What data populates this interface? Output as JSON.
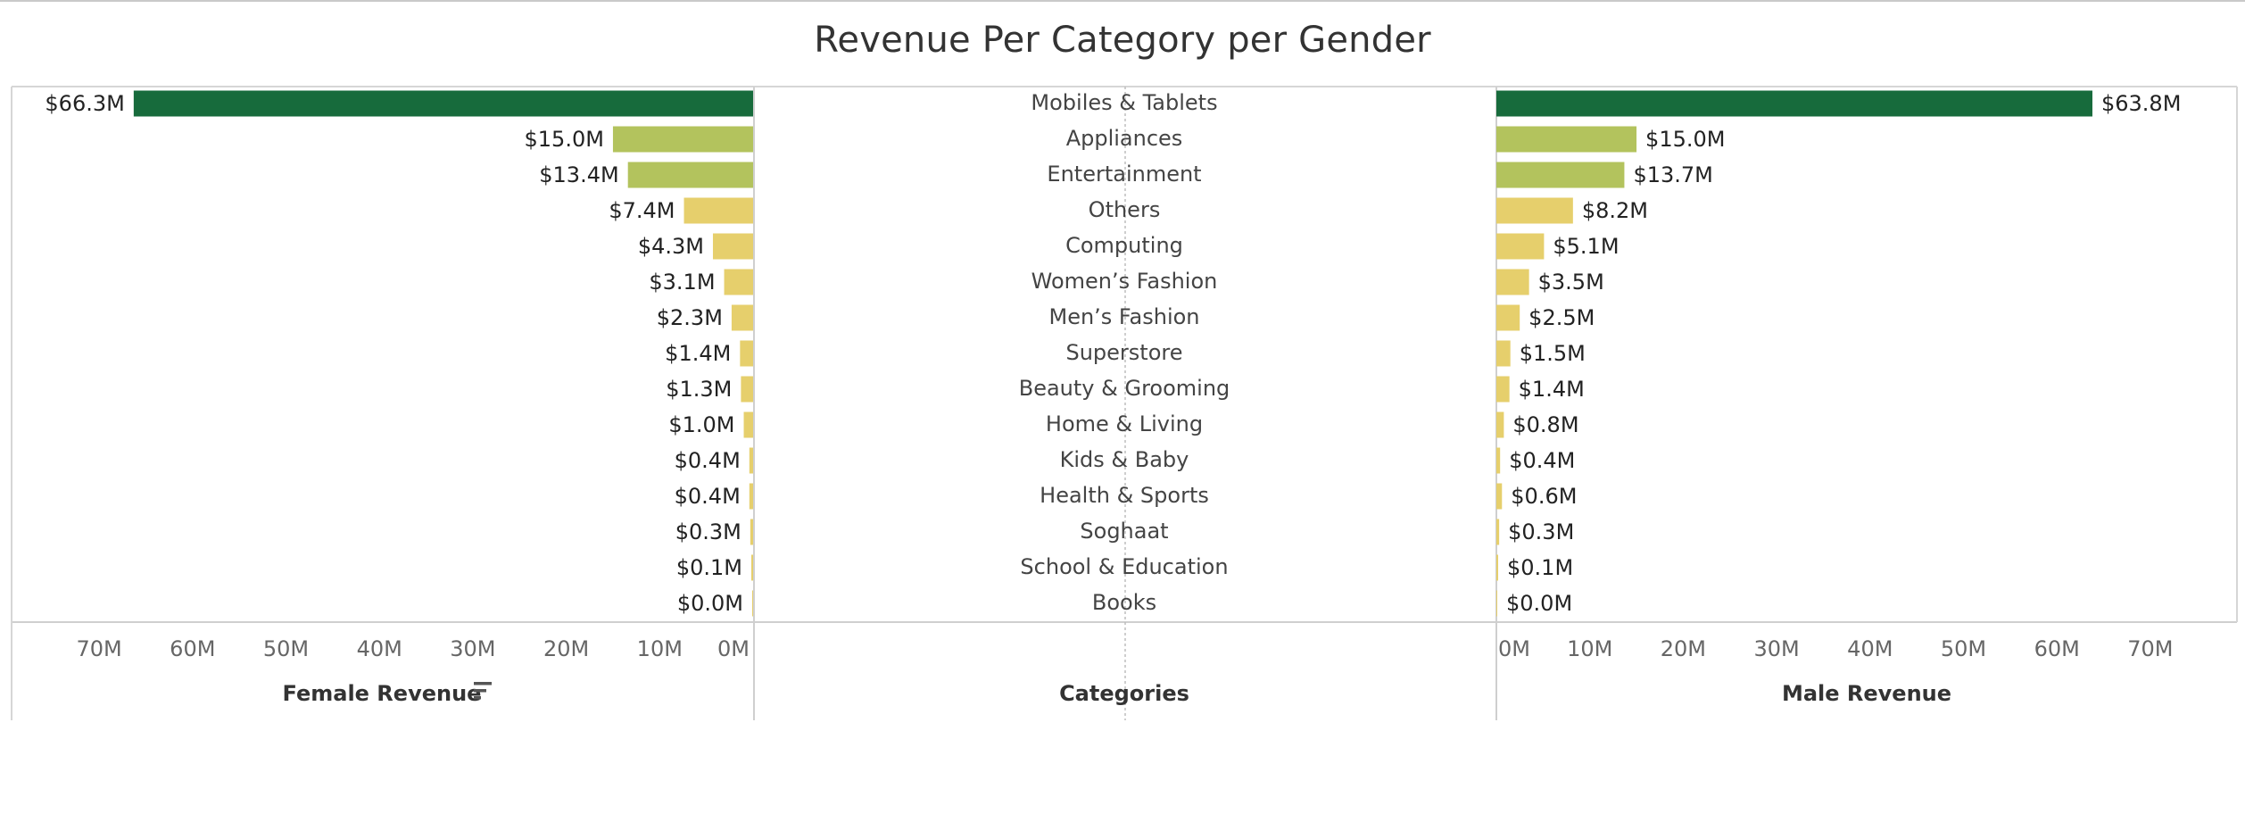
{
  "title": "Revenue Per Category per Gender",
  "chart_data": {
    "type": "bar",
    "title": "Revenue Per Category per Gender",
    "categories": [
      "Mobiles & Tablets",
      "Appliances",
      "Entertainment",
      "Others",
      "Computing",
      "Women’s Fashion",
      "Men’s Fashion",
      "Superstore",
      "Beauty & Grooming",
      "Home & Living",
      "Kids & Baby",
      "Health & Sports",
      "Soghaat",
      "School & Education",
      "Books"
    ],
    "series": [
      {
        "name": "Female Revenue",
        "values": [
          66.3,
          15.0,
          13.4,
          7.4,
          4.3,
          3.1,
          2.3,
          1.4,
          1.3,
          1.0,
          0.4,
          0.4,
          0.3,
          0.1,
          0.0
        ],
        "labels": [
          "$66.3M",
          "$15.0M",
          "$13.4M",
          "$7.4M",
          "$4.3M",
          "$3.1M",
          "$2.3M",
          "$1.4M",
          "$1.3M",
          "$1.0M",
          "$0.4M",
          "$0.4M",
          "$0.3M",
          "$0.1M",
          "$0.0M"
        ]
      },
      {
        "name": "Male Revenue",
        "values": [
          63.8,
          15.0,
          13.7,
          8.2,
          5.1,
          3.5,
          2.5,
          1.5,
          1.4,
          0.8,
          0.4,
          0.6,
          0.3,
          0.1,
          0.0
        ],
        "labels": [
          "$63.8M",
          "$15.0M",
          "$13.7M",
          "$8.2M",
          "$5.1M",
          "$3.5M",
          "$2.5M",
          "$1.5M",
          "$1.4M",
          "$0.8M",
          "$0.4M",
          "$0.6M",
          "$0.3M",
          "$0.1M",
          "$0.0M"
        ]
      }
    ],
    "xlabel_left": "Female Revenue",
    "xlabel_center": "Categories",
    "xlabel_right": "Male Revenue",
    "ticks": [
      0,
      10,
      20,
      30,
      40,
      50,
      60,
      70
    ],
    "tick_labels": [
      "0M",
      "10M",
      "20M",
      "30M",
      "40M",
      "50M",
      "60M",
      "70M"
    ],
    "xlim": [
      0,
      70
    ],
    "legend": "none",
    "grid": false,
    "colors": {
      "high": "#176b3c",
      "mid": "#b3c35d",
      "low": "#e6cf6c",
      "axis": "#cfcfcf",
      "divider": "#d0d0d0"
    },
    "sort_icon": "sort-descending-icon"
  }
}
